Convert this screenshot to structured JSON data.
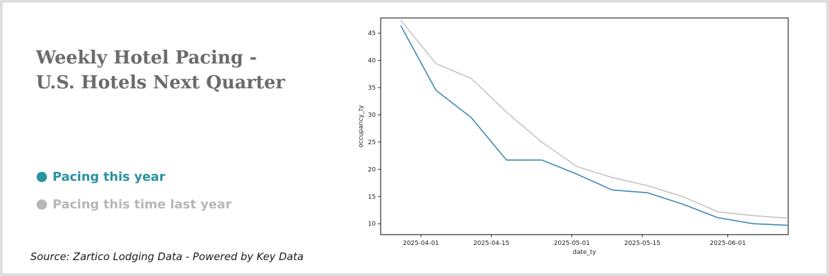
{
  "header": {
    "title_line1": "Weekly Hotel Pacing -",
    "title_line2": "U.S. Hotels Next Quarter"
  },
  "legend": {
    "this_year": "Pacing this year",
    "last_year": "Pacing this time last year"
  },
  "footer": {
    "source": "Source: Zartico Lodging Data - Powered by Key Data"
  },
  "colors": {
    "this_year": "#3b87b0",
    "last_year": "#c4c4c4",
    "legend_this_year": "#2a92a3",
    "legend_last_year": "#b7b7b7",
    "title": "#6b6b6b"
  },
  "chart_data": {
    "type": "line",
    "xlabel": "date_ty",
    "ylabel": "occupancy_ty",
    "xlim": [
      "2025-03-24",
      "2025-06-13"
    ],
    "ylim": [
      8,
      47.8
    ],
    "x_ticks": [
      "2025-04-01",
      "2025-04-15",
      "2025-05-01",
      "2025-05-15",
      "2025-06-01"
    ],
    "y_ticks": [
      10,
      15,
      20,
      25,
      30,
      35,
      40,
      45
    ],
    "grid": false,
    "x": [
      "2025-03-28",
      "2025-04-04",
      "2025-04-11",
      "2025-04-18",
      "2025-04-25",
      "2025-05-02",
      "2025-05-09",
      "2025-05-16",
      "2025-05-23",
      "2025-05-30",
      "2025-06-06",
      "2025-06-13"
    ],
    "series": [
      {
        "name": "Pacing this year",
        "key": "this_year",
        "values": [
          46.4,
          34.5,
          29.5,
          21.7,
          21.7,
          19.1,
          16.2,
          15.7,
          13.6,
          11.1,
          10.0,
          9.7
        ]
      },
      {
        "name": "Pacing this time last year",
        "key": "last_year",
        "values": [
          47.4,
          39.4,
          36.7,
          30.5,
          25.0,
          20.5,
          18.5,
          17.0,
          15.0,
          12.2,
          11.5,
          11.0
        ]
      }
    ]
  }
}
